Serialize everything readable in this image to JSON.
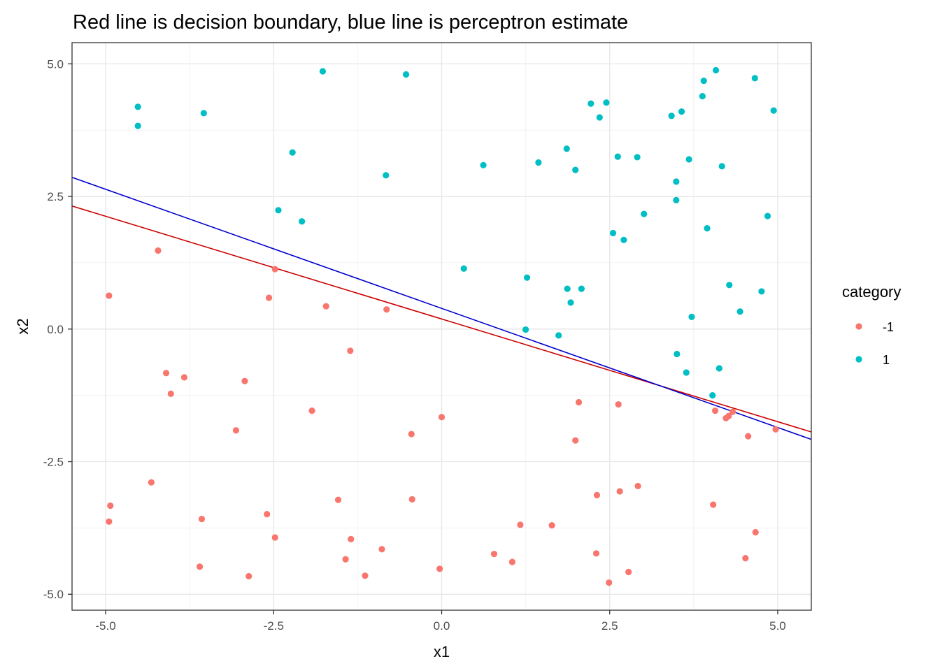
{
  "chart_data": {
    "type": "scatter",
    "title": "Red line is decision boundary, blue line is perceptron estimate",
    "xlabel": "x1",
    "ylabel": "x2",
    "xlim": [
      -5.5,
      5.5
    ],
    "ylim": [
      -5.3,
      5.4
    ],
    "x_ticks": [
      -5.0,
      -2.5,
      0.0,
      2.5,
      5.0
    ],
    "x_tick_labels": [
      "-5.0",
      "-2.5",
      "0.0",
      "2.5",
      "5.0"
    ],
    "y_ticks": [
      -5.0,
      -2.5,
      0.0,
      2.5,
      5.0
    ],
    "y_tick_labels": [
      "-5.0",
      "-2.5",
      "0.0",
      "2.5",
      "5.0"
    ],
    "grid": true,
    "legend": {
      "title": "category",
      "placement": "right",
      "entries": [
        {
          "label": "-1",
          "color": "#F8766D"
        },
        {
          "label": "1",
          "color": "#00BFC4"
        }
      ]
    },
    "series": [
      {
        "name": "-1",
        "color": "#F8766D",
        "points": [
          [
            -4.22,
            1.48
          ],
          [
            -4.95,
            0.63
          ],
          [
            -2.57,
            0.59
          ],
          [
            -2.48,
            1.13
          ],
          [
            -1.72,
            0.43
          ],
          [
            -0.82,
            0.37
          ],
          [
            -1.36,
            -0.41
          ],
          [
            -4.1,
            -0.83
          ],
          [
            -3.83,
            -0.91
          ],
          [
            -4.03,
            -1.22
          ],
          [
            -2.93,
            -0.98
          ],
          [
            -3.06,
            -1.91
          ],
          [
            -1.93,
            -1.54
          ],
          [
            0.0,
            -1.66
          ],
          [
            -0.45,
            -1.98
          ],
          [
            2.04,
            -1.38
          ],
          [
            2.63,
            -1.42
          ],
          [
            1.99,
            -2.1
          ],
          [
            4.07,
            -1.54
          ],
          [
            4.33,
            -1.56
          ],
          [
            4.27,
            -1.64
          ],
          [
            4.23,
            -1.68
          ],
          [
            4.97,
            -1.89
          ],
          [
            4.56,
            -2.02
          ],
          [
            -4.32,
            -2.89
          ],
          [
            -4.93,
            -3.33
          ],
          [
            -4.95,
            -3.63
          ],
          [
            -3.57,
            -3.58
          ],
          [
            -2.6,
            -3.49
          ],
          [
            -2.48,
            -3.93
          ],
          [
            -1.54,
            -3.22
          ],
          [
            -0.44,
            -3.21
          ],
          [
            -1.35,
            -3.96
          ],
          [
            -0.89,
            -4.15
          ],
          [
            -1.43,
            -4.34
          ],
          [
            -1.14,
            -4.65
          ],
          [
            -3.6,
            -4.48
          ],
          [
            -2.87,
            -4.66
          ],
          [
            -0.03,
            -4.52
          ],
          [
            0.78,
            -4.24
          ],
          [
            1.05,
            -4.39
          ],
          [
            1.17,
            -3.69
          ],
          [
            1.64,
            -3.7
          ],
          [
            2.31,
            -3.13
          ],
          [
            2.65,
            -3.06
          ],
          [
            2.92,
            -2.96
          ],
          [
            2.3,
            -4.23
          ],
          [
            2.49,
            -4.78
          ],
          [
            2.78,
            -4.58
          ],
          [
            4.04,
            -3.31
          ],
          [
            4.67,
            -3.83
          ],
          [
            4.52,
            -4.32
          ]
        ]
      },
      {
        "name": "1",
        "color": "#00BFC4",
        "points": [
          [
            -4.52,
            4.19
          ],
          [
            -4.52,
            3.83
          ],
          [
            -3.54,
            4.07
          ],
          [
            -1.77,
            4.86
          ],
          [
            -0.53,
            4.8
          ],
          [
            -2.22,
            3.33
          ],
          [
            -0.83,
            2.9
          ],
          [
            -2.43,
            2.24
          ],
          [
            -2.08,
            2.03
          ],
          [
            0.62,
            3.09
          ],
          [
            1.44,
            3.14
          ],
          [
            1.86,
            3.4
          ],
          [
            1.99,
            3.0
          ],
          [
            2.22,
            4.25
          ],
          [
            2.45,
            4.27
          ],
          [
            2.35,
            3.99
          ],
          [
            2.62,
            3.25
          ],
          [
            2.91,
            3.24
          ],
          [
            3.01,
            2.17
          ],
          [
            2.55,
            1.81
          ],
          [
            2.71,
            1.68
          ],
          [
            3.42,
            4.02
          ],
          [
            3.57,
            4.1
          ],
          [
            3.88,
            4.39
          ],
          [
            3.9,
            4.68
          ],
          [
            4.08,
            4.88
          ],
          [
            4.66,
            4.73
          ],
          [
            4.94,
            4.12
          ],
          [
            3.68,
            3.2
          ],
          [
            4.17,
            3.07
          ],
          [
            3.49,
            2.78
          ],
          [
            3.49,
            2.43
          ],
          [
            3.95,
            1.9
          ],
          [
            4.85,
            2.13
          ],
          [
            0.33,
            1.14
          ],
          [
            1.27,
            0.97
          ],
          [
            1.87,
            0.76
          ],
          [
            2.08,
            0.76
          ],
          [
            1.92,
            0.5
          ],
          [
            1.25,
            -0.01
          ],
          [
            1.74,
            -0.12
          ],
          [
            4.28,
            0.83
          ],
          [
            4.76,
            0.71
          ],
          [
            4.44,
            0.33
          ],
          [
            3.72,
            0.23
          ],
          [
            3.5,
            -0.47
          ],
          [
            3.64,
            -0.82
          ],
          [
            4.13,
            -0.74
          ],
          [
            4.03,
            -1.25
          ]
        ]
      }
    ],
    "lines": [
      {
        "name": "decision boundary",
        "color": "#CC0000",
        "x": [
          -5.5,
          5.5
        ],
        "y": [
          2.32,
          -1.94
        ]
      },
      {
        "name": "perceptron estimate",
        "color": "#0000CC",
        "x": [
          -5.5,
          5.5
        ],
        "y": [
          2.86,
          -2.08
        ]
      }
    ]
  }
}
